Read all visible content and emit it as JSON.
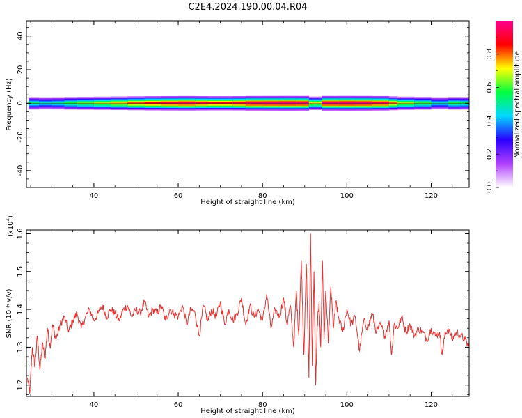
{
  "title": "C2E4.2024.190.00.04.R04",
  "chart_data": [
    {
      "type": "heatmap",
      "xlabel": "Height of straight line (km)",
      "ylabel": "Frequency (Hz)",
      "xlim": [
        24,
        129
      ],
      "ylim": [
        -50,
        49
      ],
      "xticks": [
        40,
        60,
        80,
        100,
        120
      ],
      "yticks": [
        40,
        20,
        0,
        -20,
        -40
      ],
      "band_center_hz": 0,
      "band_halfwidth_hz": 4,
      "colorbar": {
        "label": "Normalized spectral amplitude",
        "range": [
          0,
          1
        ],
        "ticks": [
          0.0,
          0.2,
          0.4,
          0.6,
          0.8
        ],
        "tick_labels": [
          "0.0",
          "0.2",
          "0.4",
          "0.6",
          "0.8"
        ],
        "colormap": [
          "#ffffff",
          "#b040ff",
          "#2a00ff",
          "#00d8ff",
          "#00ff40",
          "#ffff00",
          "#ff0000",
          "#ff0090"
        ]
      },
      "profile": [
        {
          "x": 24.5,
          "amp": 0.55
        },
        {
          "x": 27,
          "amp": 0.5
        },
        {
          "x": 30,
          "amp": 0.45
        },
        {
          "x": 33,
          "amp": 0.55
        },
        {
          "x": 36,
          "amp": 0.6
        },
        {
          "x": 40,
          "amp": 0.65
        },
        {
          "x": 44,
          "amp": 0.7
        },
        {
          "x": 48,
          "amp": 0.78
        },
        {
          "x": 52,
          "amp": 0.85
        },
        {
          "x": 56,
          "amp": 0.9
        },
        {
          "x": 60,
          "amp": 0.92
        },
        {
          "x": 64,
          "amp": 0.95
        },
        {
          "x": 67,
          "amp": 0.85
        },
        {
          "x": 70,
          "amp": 0.9
        },
        {
          "x": 73,
          "amp": 0.85
        },
        {
          "x": 76,
          "amp": 0.95
        },
        {
          "x": 80,
          "amp": 0.96
        },
        {
          "x": 84,
          "amp": 0.97
        },
        {
          "x": 88,
          "amp": 0.98
        },
        {
          "x": 91,
          "amp": 0.95
        },
        {
          "x": 92.5,
          "amp": 0.45
        },
        {
          "x": 94,
          "amp": 0.95
        },
        {
          "x": 98,
          "amp": 0.98
        },
        {
          "x": 102,
          "amp": 0.97
        },
        {
          "x": 106,
          "amp": 0.96
        },
        {
          "x": 110,
          "amp": 0.9
        },
        {
          "x": 112,
          "amp": 0.7
        },
        {
          "x": 116,
          "amp": 0.65
        },
        {
          "x": 120,
          "amp": 0.55
        },
        {
          "x": 122,
          "amp": 0.4
        },
        {
          "x": 124,
          "amp": 0.55
        },
        {
          "x": 127,
          "amp": 0.6
        },
        {
          "x": 129,
          "amp": 0.5
        }
      ]
    },
    {
      "type": "line",
      "xlabel": "Height of straight line (km)",
      "ylabel": "SNR (10 * v/v)",
      "y_multiplier": "(x10",
      "y_multiplier_exp": "4",
      "xlim": [
        24,
        129
      ],
      "ylim": [
        1.17,
        1.61
      ],
      "xticks": [
        40,
        60,
        80,
        100,
        120
      ],
      "yticks": [
        1.2,
        1.3,
        1.4,
        1.5,
        1.6
      ],
      "color": "#e8312f",
      "series": [
        {
          "x": [
            24.2,
            24.8,
            25.4,
            26.0,
            26.6,
            27.2,
            27.8,
            28.4,
            29.0,
            29.6,
            30.2,
            31.0,
            32.0,
            33.0,
            34.0,
            35.0,
            36.0,
            37.0,
            38.0,
            39.0,
            40.0,
            41.0,
            42.0,
            43.0,
            44.0,
            45.0,
            46.0,
            47.0,
            48.0,
            49.0,
            50.0,
            51.0,
            52.0,
            53.0,
            54.0,
            55.0,
            56.0,
            57.0,
            58.0,
            59.0,
            60.0,
            61.0,
            62.0,
            63.0,
            64.0,
            65.0,
            66.0,
            67.0,
            68.0,
            69.0,
            70.0,
            71.0,
            72.0,
            73.0,
            74.0,
            75.0,
            76.0,
            77.0,
            78.0,
            79.0,
            80.0,
            81.0,
            82.0,
            83.0,
            84.0,
            85.0,
            85.8,
            86.6,
            87.4,
            88.0,
            88.6,
            89.2,
            89.8,
            90.4,
            91.0,
            91.4,
            91.8,
            92.2,
            92.6,
            93.0,
            93.4,
            93.8,
            94.2,
            94.6,
            95.0,
            95.6,
            96.2,
            96.8,
            97.4,
            98.0,
            99.0,
            100.0,
            101.0,
            102.0,
            103.0,
            104.0,
            105.0,
            106.0,
            107.0,
            108.0,
            109.0,
            110.0,
            110.6,
            111.2,
            112.0,
            113.0,
            114.0,
            115.0,
            116.0,
            117.0,
            118.0,
            119.0,
            120.0,
            121.0,
            122.0,
            122.6,
            123.2,
            124.0,
            125.0,
            126.0,
            127.0,
            128.0,
            129.0
          ],
          "y": [
            1.22,
            1.18,
            1.3,
            1.25,
            1.33,
            1.24,
            1.31,
            1.27,
            1.35,
            1.3,
            1.36,
            1.32,
            1.36,
            1.38,
            1.34,
            1.37,
            1.39,
            1.35,
            1.38,
            1.4,
            1.37,
            1.39,
            1.41,
            1.38,
            1.4,
            1.39,
            1.37,
            1.4,
            1.41,
            1.38,
            1.4,
            1.39,
            1.42,
            1.38,
            1.4,
            1.39,
            1.41,
            1.37,
            1.4,
            1.39,
            1.38,
            1.41,
            1.36,
            1.4,
            1.39,
            1.33,
            1.41,
            1.37,
            1.4,
            1.38,
            1.42,
            1.36,
            1.4,
            1.37,
            1.39,
            1.43,
            1.36,
            1.41,
            1.38,
            1.4,
            1.37,
            1.44,
            1.35,
            1.4,
            1.38,
            1.43,
            1.36,
            1.41,
            1.3,
            1.45,
            1.33,
            1.53,
            1.28,
            1.52,
            1.22,
            1.6,
            1.25,
            1.5,
            1.2,
            1.36,
            1.42,
            1.3,
            1.53,
            1.32,
            1.45,
            1.31,
            1.46,
            1.35,
            1.42,
            1.38,
            1.34,
            1.4,
            1.36,
            1.38,
            1.29,
            1.37,
            1.35,
            1.39,
            1.34,
            1.36,
            1.33,
            1.37,
            1.28,
            1.36,
            1.35,
            1.38,
            1.34,
            1.36,
            1.33,
            1.35,
            1.34,
            1.32,
            1.35,
            1.33,
            1.34,
            1.28,
            1.33,
            1.35,
            1.32,
            1.34,
            1.33,
            1.32,
            1.3
          ]
        }
      ]
    }
  ]
}
